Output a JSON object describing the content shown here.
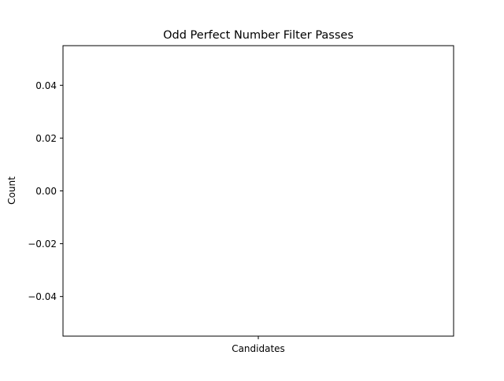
{
  "chart_data": {
    "type": "bar",
    "title": "Odd Perfect Number Filter Passes",
    "xlabel": "",
    "ylabel": "Count",
    "categories": [
      "Candidates"
    ],
    "values": [
      0
    ],
    "ylim": [
      -0.055,
      0.055
    ],
    "yticks": [
      0.04,
      0.02,
      0.0,
      -0.02,
      -0.04
    ],
    "ytick_labels": [
      "0.04",
      "0.02",
      "0.00",
      "−0.02",
      "−0.04"
    ],
    "grid": false,
    "legend": "none"
  }
}
